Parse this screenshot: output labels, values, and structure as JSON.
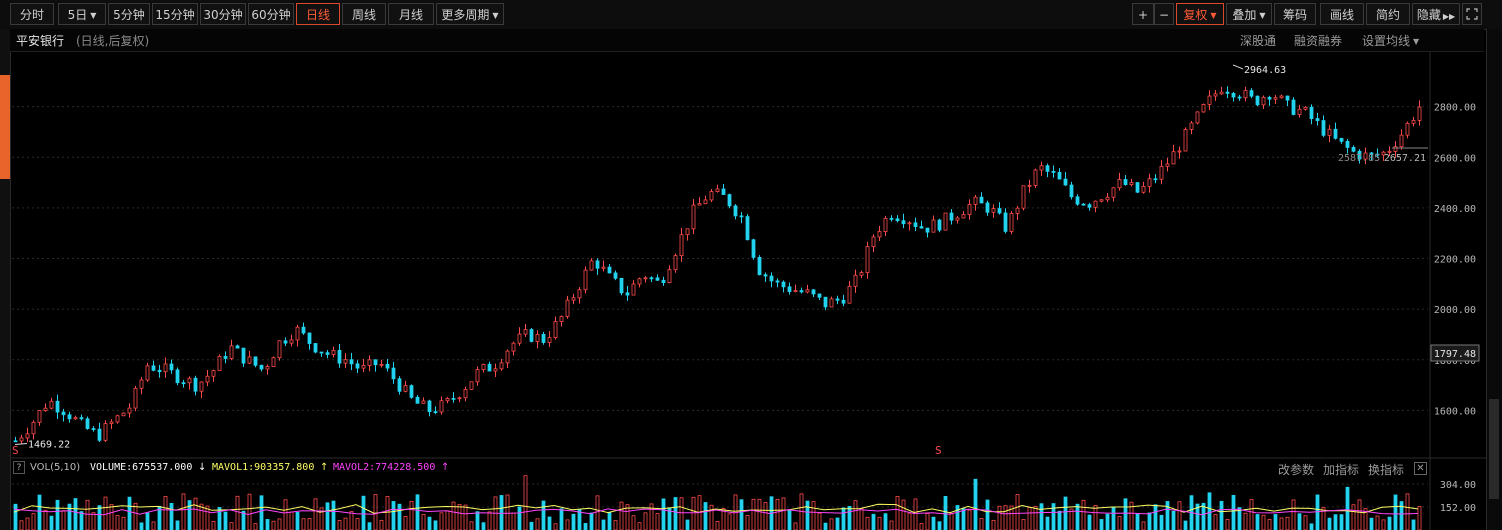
{
  "toolbar": {
    "periods": [
      {
        "label": "分时",
        "dropdown": false,
        "active": false
      },
      {
        "label": "5日",
        "dropdown": true,
        "active": false
      },
      {
        "label": "5分钟",
        "dropdown": false,
        "active": false
      },
      {
        "label": "15分钟",
        "dropdown": false,
        "active": false
      },
      {
        "label": "30分钟",
        "dropdown": false,
        "active": false
      },
      {
        "label": "60分钟",
        "dropdown": false,
        "active": false
      },
      {
        "label": "日线",
        "dropdown": false,
        "active": true
      },
      {
        "label": "周线",
        "dropdown": false,
        "active": false
      },
      {
        "label": "月线",
        "dropdown": false,
        "active": false
      },
      {
        "label": "更多周期",
        "dropdown": true,
        "active": false
      }
    ],
    "zoom_in": "+",
    "zoom_out": "−",
    "fuquan": "复权",
    "diejia": "叠加",
    "chouma": "筹码",
    "huaxian": "画线",
    "jianyue": "简约",
    "yincang": "隐藏",
    "fullscreen_icon": "fullscreen-icon",
    "colors": {
      "active": "#ff5a36"
    }
  },
  "title": {
    "stock_name": "平安银行",
    "subtitle": "(日线,后复权)",
    "link_shengutong": "深股通",
    "link_rongzi": "融资融券",
    "link_ma": "设置均线"
  },
  "chart_data": {
    "type": "candlestick",
    "title": "平安银行",
    "ylim": [
      1420,
      3000
    ],
    "y_ticks": [
      {
        "value": 2800,
        "label": "2800.00"
      },
      {
        "value": 2600,
        "label": "2600.00"
      },
      {
        "value": 2400,
        "label": "2400.00"
      },
      {
        "value": 2200,
        "label": "2200.00"
      },
      {
        "value": 2000,
        "label": "2000.00"
      },
      {
        "value": 1800,
        "label": "1800.00"
      },
      {
        "value": 1600,
        "label": "1600.00"
      }
    ],
    "current_price_label": "1797.48",
    "annotations": {
      "high": {
        "label": "2964.63",
        "value": 2964.63
      },
      "low": {
        "label": "1469.22",
        "value": 1469.22
      },
      "recent_low": {
        "label": "2587.85",
        "value": 2587.85
      },
      "recent_right": {
        "label": "2657.21",
        "value": 2657.21
      }
    },
    "markers": [
      "S",
      "S"
    ],
    "trend": [
      1480,
      1550,
      1640,
      1600,
      1540,
      1500,
      1560,
      1620,
      1780,
      1760,
      1730,
      1700,
      1760,
      1850,
      1800,
      1760,
      1870,
      1920,
      1860,
      1820,
      1800,
      1760,
      1790,
      1720,
      1640,
      1600,
      1620,
      1680,
      1750,
      1780,
      1860,
      1900,
      1880,
      1960,
      2080,
      2200,
      2120,
      2060,
      2140,
      2100,
      2240,
      2380,
      2460,
      2440,
      2360,
      2160,
      2100,
      2080,
      2060,
      2020,
      2040,
      2120,
      2300,
      2380,
      2360,
      2320,
      2340,
      2380,
      2420,
      2400,
      2320,
      2460,
      2560,
      2520,
      2440,
      2420,
      2460,
      2500,
      2460,
      2520,
      2600,
      2700,
      2800,
      2880,
      2860,
      2820,
      2860,
      2800,
      2780,
      2720,
      2660,
      2620,
      2600,
      2620,
      2700,
      2800
    ],
    "colors": {
      "up": "#ff4a4a",
      "down": "#22d3ee",
      "grid": "#2a2a2a",
      "axis_text": "#b8b8b8"
    }
  },
  "volume": {
    "help": "?",
    "name": "VOL(5,10)",
    "volume_text": "VOLUME:675537.000",
    "mavol1_text": "MAVOL1:903357.800",
    "mavol2_text": "MAVOL2:774228.500",
    "arrow_down": "↓",
    "arrow_up1": "↑",
    "arrow_up2": "↑",
    "gai_canshu": "改参数",
    "jia_zhibiao": "加指标",
    "huan_zhibiao": "换指标",
    "close": "✕",
    "y_ticks": [
      {
        "value": 304,
        "label": "304.00"
      },
      {
        "value": 152,
        "label": "152.00"
      }
    ],
    "colors": {
      "volume": "#ffffff",
      "mavol1": "#ffff66",
      "mavol2": "#ff44ff"
    }
  }
}
